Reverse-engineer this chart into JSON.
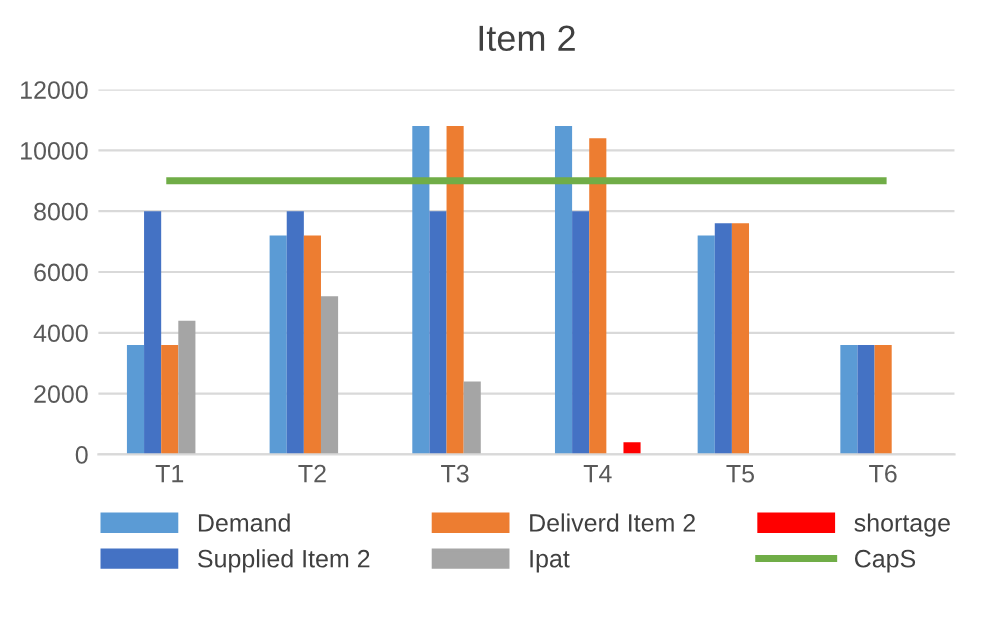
{
  "chart_data": {
    "type": "bar",
    "title": "Item 2",
    "categories": [
      "T1",
      "T2",
      "T3",
      "T4",
      "T5",
      "T6"
    ],
    "series": [
      {
        "name": "Demand",
        "color": "#5b9bd5",
        "values": [
          3600,
          7200,
          10800,
          10800,
          7200,
          3600
        ]
      },
      {
        "name": "Supplied Item 2",
        "color": "#4472c4",
        "values": [
          8000,
          8000,
          8000,
          8000,
          7600,
          3600
        ]
      },
      {
        "name": "Deliverd Item 2",
        "color": "#ed7d31",
        "values": [
          3600,
          7200,
          10800,
          10400,
          7600,
          3600
        ]
      },
      {
        "name": "Ipat",
        "color": "#a5a5a5",
        "values": [
          4400,
          5200,
          2400,
          null,
          null,
          null
        ]
      },
      {
        "name": "shortage",
        "color": "#ff0000",
        "values": [
          null,
          null,
          null,
          400,
          null,
          null
        ]
      },
      {
        "name": "CapS",
        "color": "#70ad47",
        "type": "line",
        "values": [
          9000,
          9000,
          9000,
          9000,
          9000,
          9000
        ]
      }
    ],
    "ylim": [
      0,
      12000
    ],
    "yticks": [
      0,
      2000,
      4000,
      6000,
      8000,
      10000,
      12000
    ],
    "grid": "y",
    "legend": "bottom"
  }
}
